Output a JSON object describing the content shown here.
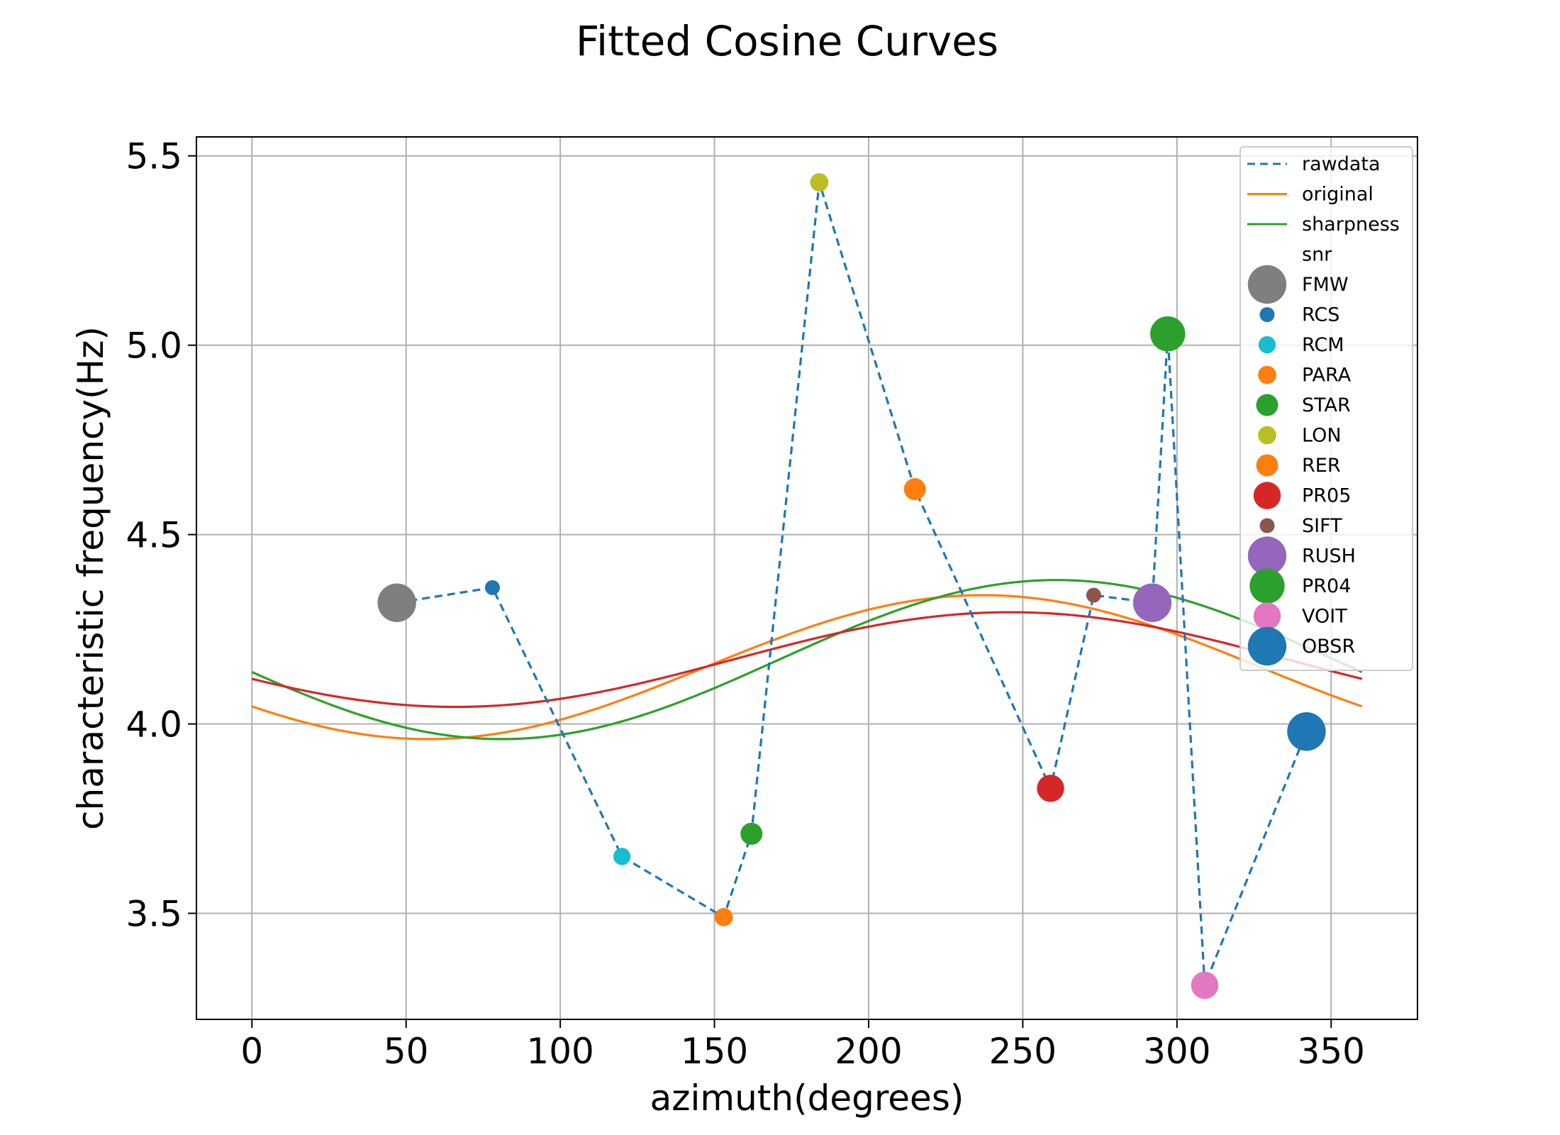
{
  "chart_data": {
    "type": "scatter",
    "title": "Fitted Cosine Curves",
    "xlabel": "azimuth(degrees)",
    "ylabel": "characteristic frequency(Hz)",
    "xlim": [
      -18,
      378
    ],
    "ylim": [
      3.22,
      5.55
    ],
    "xticks": [
      0,
      50,
      100,
      150,
      200,
      250,
      300,
      350
    ],
    "yticks": [
      3.5,
      4.0,
      4.5,
      5.0,
      5.5
    ],
    "grid": true,
    "legend_position": "top-right",
    "lines": [
      {
        "name": "rawdata",
        "color": "#1f77b4",
        "style": "dashed",
        "source": "stations"
      },
      {
        "name": "original",
        "color": "#ff7f0e",
        "style": "solid",
        "offset": 4.15,
        "amplitude": 0.19,
        "phase_deg": 237
      },
      {
        "name": "sharpness",
        "color": "#2ca02c",
        "style": "solid",
        "offset": 4.17,
        "amplitude": 0.21,
        "phase_deg": 261
      },
      {
        "name": "",
        "color": "#d62728",
        "style": "solid",
        "offset": 4.17,
        "amplitude": 0.125,
        "phase_deg": 246
      }
    ],
    "size_legend_label": "snr",
    "stations": [
      {
        "name": "FMW",
        "azimuth": 47,
        "frequency": 4.32,
        "snr": 40,
        "color": "#7f7f7f"
      },
      {
        "name": "RCS",
        "azimuth": 78,
        "frequency": 4.36,
        "snr": 6,
        "color": "#1f77b4"
      },
      {
        "name": "RCM",
        "azimuth": 120,
        "frequency": 3.65,
        "snr": 8,
        "color": "#17becf"
      },
      {
        "name": "PARA",
        "azimuth": 153,
        "frequency": 3.49,
        "snr": 9,
        "color": "#ff7f0e"
      },
      {
        "name": "STAR",
        "azimuth": 162,
        "frequency": 3.71,
        "snr": 13,
        "color": "#2ca02c"
      },
      {
        "name": "LON",
        "azimuth": 184,
        "frequency": 5.43,
        "snr": 9,
        "color": "#bcbd22"
      },
      {
        "name": "RER",
        "azimuth": 215,
        "frequency": 4.62,
        "snr": 13,
        "color": "#ff7f0e"
      },
      {
        "name": "PR05",
        "azimuth": 259,
        "frequency": 3.83,
        "snr": 20,
        "color": "#d62728"
      },
      {
        "name": "SIFT",
        "azimuth": 273,
        "frequency": 4.34,
        "snr": 6,
        "color": "#8c564b"
      },
      {
        "name": "RUSH",
        "azimuth": 292,
        "frequency": 4.32,
        "snr": 40,
        "color": "#9467bd"
      },
      {
        "name": "PR04",
        "azimuth": 297,
        "frequency": 5.03,
        "snr": 33,
        "color": "#2ca02c"
      },
      {
        "name": "VOIT",
        "azimuth": 309,
        "frequency": 3.31,
        "snr": 20,
        "color": "#e377c2"
      },
      {
        "name": "OBSR",
        "azimuth": 342,
        "frequency": 3.98,
        "snr": 40,
        "color": "#1f77b4"
      }
    ]
  }
}
